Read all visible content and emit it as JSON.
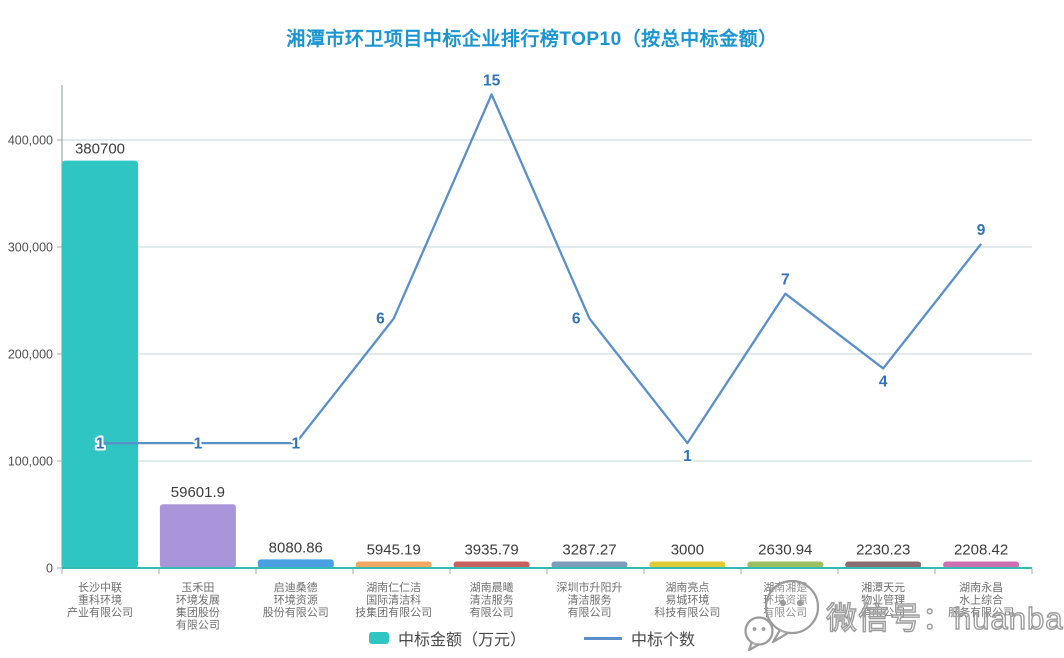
{
  "title": "湘潭市环卫项目中标企业排行榜TOP10（按总中标金额）",
  "legend": {
    "items": [
      {
        "label": "中标金额（万元）",
        "swatch": "bar",
        "color": "#2ec5c3"
      },
      {
        "label": "中标个数",
        "swatch": "line",
        "color": "#5b8fc9"
      }
    ]
  },
  "watermark": {
    "label": "微信号：huanbaoq",
    "icon": "wechat-icon"
  },
  "chart_data": {
    "type": "bar",
    "combo": [
      "bar",
      "line"
    ],
    "title": "湘潭市环卫项目中标企业排行榜TOP10（按总中标金额）",
    "categories": [
      "长沙中联重科环境产业有限公司",
      "玉禾田环境发展集团股份有限公司",
      "启迪桑德环境资源股份有限公司",
      "湖南仁仁洁国际清洁科技集团有限公司",
      "湖南晨曦清洁服务有限公司",
      "深圳市升阳升清洁服务有限公司",
      "湖南亮点易城环境科技有限公司",
      "湖南湘楚环境资源有限公司",
      "湘潭天元物业管理有限公司",
      "湖南永昌水上综合服务有限公司"
    ],
    "category_label_lines": [
      [
        "长沙中联",
        "重科环境",
        "产业有限公司"
      ],
      [
        "玉禾田",
        "环境发展",
        "集团股份",
        "有限公司"
      ],
      [
        "启迪桑德",
        "环境资源",
        "股份有限公司"
      ],
      [
        "湖南仁仁洁",
        "国际清洁科",
        "技集团有限公司"
      ],
      [
        "湖南晨曦",
        "清洁服务",
        "有限公司"
      ],
      [
        "深圳市升阳升",
        "清洁服务",
        "有限公司"
      ],
      [
        "湖南亮点",
        "易城环境",
        "科技有限公司"
      ],
      [
        "湖南湘楚",
        "环境资源",
        "有限公司"
      ],
      [
        "湘潭天元",
        "物业管理",
        "有限公司"
      ],
      [
        "湖南永昌",
        "水上综合",
        "服务有限公司"
      ]
    ],
    "series": [
      {
        "name": "中标金额（万元）",
        "type": "bar",
        "values": [
          380700,
          59601.9,
          8080.86,
          5945.19,
          3935.79,
          3287.27,
          3000,
          2630.94,
          2230.23,
          2208.42
        ],
        "labels": [
          "380700",
          "59601.9",
          "8080.86",
          "5945.19",
          "3935.79",
          "3287.27",
          "3000",
          "2630.94",
          "2230.23",
          "2208.42"
        ],
        "colors": [
          "#2ec5c3",
          "#a995da",
          "#4a9fe0",
          "#f2a862",
          "#c9605f",
          "#7f9db9",
          "#e0ca35",
          "#9cbf5f",
          "#8b6c72",
          "#cc70b2"
        ]
      },
      {
        "name": "中标个数",
        "type": "line",
        "values": [
          1,
          1,
          1,
          6,
          15,
          6,
          1,
          7,
          4,
          9
        ],
        "labels": [
          "1",
          "1",
          "1",
          "6",
          "15",
          "6",
          "1",
          "7",
          "4",
          "9"
        ],
        "color": "#5b8fc9",
        "label_color": "#3273b8"
      }
    ],
    "y_axis_left": {
      "tick_values": [
        0,
        100000,
        200000,
        300000,
        400000
      ],
      "tick_labels": [
        "0",
        "100,000",
        "200,000",
        "300,000",
        "400,000"
      ],
      "max": 451000,
      "grid": true
    },
    "y_axis_right": {
      "visible": false,
      "note": "line series plotted on hidden secondary axis"
    },
    "legend_position": "bottom",
    "colors": {
      "baseline": "#2fbcb2",
      "y_axis_line": "#9fa8ab",
      "gridline": "#c5d6da",
      "tick": "#9fa8ab",
      "bar_value_label": "#3c3c3c",
      "category_label": "#6e6e6e",
      "y_tick_label": "#4f4f4f",
      "title": "#1b95d2"
    }
  }
}
